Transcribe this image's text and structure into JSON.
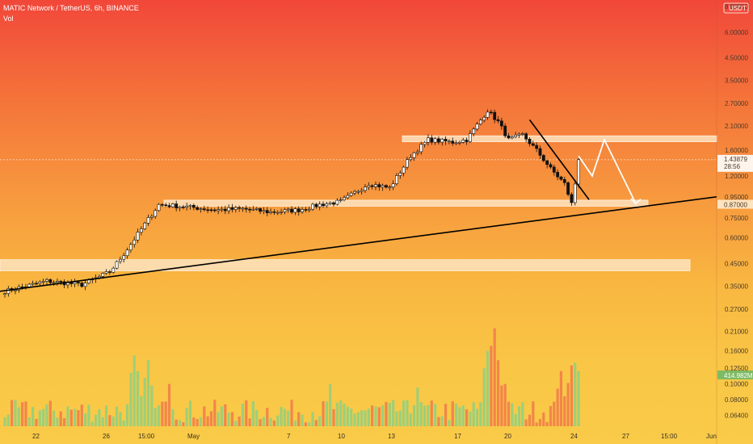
{
  "header": {
    "symbol_line": "MATIC Network / TetherUS, 6h, BINANCE",
    "volume_label": "Vol",
    "currency_badge": "USDT"
  },
  "colors": {
    "up_body": "#ffffff",
    "down_body": "#111111",
    "wick": "#111111",
    "volume_up": "#9ecf78",
    "volume_down": "#f2854a",
    "zone_fill": "#fde3bf",
    "trendline": "#000000",
    "projection": "#ffffff",
    "price_tag_bg": "#ffffff",
    "volume_tag_bg": "#7dbb62"
  },
  "chart_data": {
    "type": "candlestick",
    "y_scale": "log",
    "ylim": [
      0.27,
      8.0
    ],
    "y_ticks": [
      "6.00000",
      "4.50000",
      "3.50000",
      "2.70000",
      "2.10000",
      "1.60000",
      "1.20000",
      "0.95000",
      "0.75000",
      "0.60000",
      "0.45000",
      "0.35000",
      "0.27000"
    ],
    "volume_ticks": [
      "0.21000",
      "0.16000",
      "0.12500",
      "0.10000",
      "0.08000",
      "0.06400"
    ],
    "x_tick_labels": [
      "22",
      "26",
      "15:00",
      "May",
      "7",
      "10",
      "13",
      "17",
      "20",
      "24",
      "27",
      "15:00",
      "Jun"
    ],
    "current_price": 1.43879,
    "current_price_label": "1.43879",
    "countdown_label": "28:56",
    "level_price": 0.87,
    "level_label": "0.87000",
    "volume_label_value": "414.982M",
    "top_tick_label": "8.00000",
    "zones": [
      {
        "low": 0.415,
        "high": 0.47
      },
      {
        "low": 0.855,
        "high": 0.915
      },
      {
        "low": 1.76,
        "high": 1.88
      }
    ],
    "anchors": [
      {
        "i": 0,
        "p": 0.33
      },
      {
        "i": 12,
        "p": 0.37
      },
      {
        "i": 22,
        "p": 0.355
      },
      {
        "i": 30,
        "p": 0.41
      },
      {
        "i": 34,
        "p": 0.5
      },
      {
        "i": 40,
        "p": 0.7
      },
      {
        "i": 44,
        "p": 0.87
      },
      {
        "i": 52,
        "p": 0.85
      },
      {
        "i": 60,
        "p": 0.82
      },
      {
        "i": 68,
        "p": 0.83
      },
      {
        "i": 76,
        "p": 0.8
      },
      {
        "i": 84,
        "p": 0.82
      },
      {
        "i": 90,
        "p": 0.87
      },
      {
        "i": 96,
        "p": 0.9
      },
      {
        "i": 104,
        "p": 1.1
      },
      {
        "i": 110,
        "p": 1.05
      },
      {
        "i": 116,
        "p": 1.5
      },
      {
        "i": 121,
        "p": 1.8
      },
      {
        "i": 128,
        "p": 1.75
      },
      {
        "i": 132,
        "p": 1.8
      },
      {
        "i": 138,
        "p": 2.5
      },
      {
        "i": 141,
        "p": 2.2
      },
      {
        "i": 144,
        "p": 1.8
      },
      {
        "i": 148,
        "p": 1.9
      },
      {
        "i": 152,
        "p": 1.6
      },
      {
        "i": 156,
        "p": 1.3
      },
      {
        "i": 160,
        "p": 1.1
      },
      {
        "i": 162,
        "p": 0.88
      },
      {
        "i": 163,
        "p": 1.1
      },
      {
        "i": 164,
        "p": 1.44
      }
    ],
    "volume_peaks": [
      {
        "i": 37,
        "v": 0.15
      },
      {
        "i": 38,
        "v": 0.12
      },
      {
        "i": 41,
        "v": 0.14
      },
      {
        "i": 47,
        "v": 0.1
      },
      {
        "i": 93,
        "v": 0.1
      },
      {
        "i": 118,
        "v": 0.095
      },
      {
        "i": 138,
        "v": 0.16
      },
      {
        "i": 140,
        "v": 0.22
      },
      {
        "i": 141,
        "v": 0.14
      },
      {
        "i": 143,
        "v": 0.1
      },
      {
        "i": 159,
        "v": 0.12
      },
      {
        "i": 162,
        "v": 0.13
      },
      {
        "i": 163,
        "v": 0.135
      },
      {
        "i": 164,
        "v": 0.12
      }
    ]
  }
}
